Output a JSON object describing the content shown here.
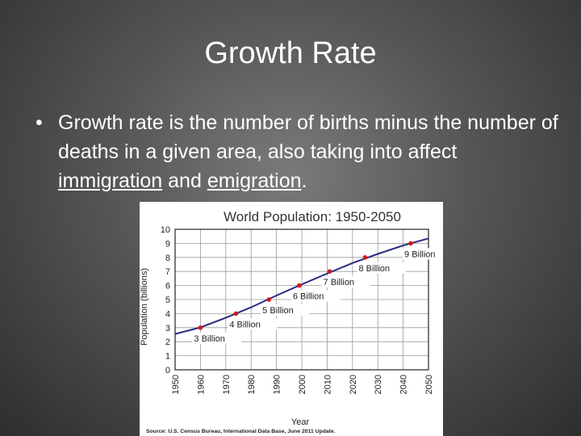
{
  "slide": {
    "title": "Growth Rate",
    "bullet_marker": "•",
    "bullet_parts": [
      {
        "text": "Growth rate is the number of births minus the number of deaths in a given area, also taking into affect ",
        "u": false
      },
      {
        "text": "immigration",
        "u": true
      },
      {
        "text": " and ",
        "u": false
      },
      {
        "text": "emigration",
        "u": true
      },
      {
        "text": ".",
        "u": false
      }
    ]
  },
  "colors": {
    "line": "#2b2d83",
    "marker": "#d01b1b",
    "grid": "#9a9a9a"
  },
  "chart_data": {
    "type": "line",
    "title": "World Population: 1950-2050",
    "xlabel": "Year",
    "ylabel": "Population (billions)",
    "xlim": [
      1950,
      2050
    ],
    "ylim": [
      0,
      10
    ],
    "x_ticks": [
      "1950",
      "1960",
      "1970",
      "1980",
      "1990",
      "2000",
      "2010",
      "2020",
      "2030",
      "2040",
      "2050"
    ],
    "y_ticks": [
      "0",
      "1",
      "2",
      "3",
      "4",
      "5",
      "6",
      "7",
      "8",
      "9",
      "10"
    ],
    "grid": true,
    "series": [
      {
        "x": [
          1950,
          1960,
          1970,
          1980,
          1990,
          2000,
          2010,
          2020,
          2030,
          2040,
          2050
        ],
        "values": [
          2.55,
          3.02,
          3.7,
          4.45,
          5.29,
          6.08,
          6.85,
          7.6,
          8.25,
          8.85,
          9.35
        ]
      }
    ],
    "milestones": [
      {
        "year": 1960,
        "value": 3,
        "label": "3 Billion"
      },
      {
        "year": 1974,
        "value": 4,
        "label": "4 Billion"
      },
      {
        "year": 1987,
        "value": 5,
        "label": "5 Billion"
      },
      {
        "year": 1999,
        "value": 6,
        "label": "6 Billion"
      },
      {
        "year": 2011,
        "value": 7,
        "label": "7 Billion"
      },
      {
        "year": 2025,
        "value": 8,
        "label": "8 Billion"
      },
      {
        "year": 2043,
        "value": 9,
        "label": "9 Billion"
      }
    ],
    "source": "Source: U.S. Census Bureau, International Data Base, June 2011 Update."
  }
}
